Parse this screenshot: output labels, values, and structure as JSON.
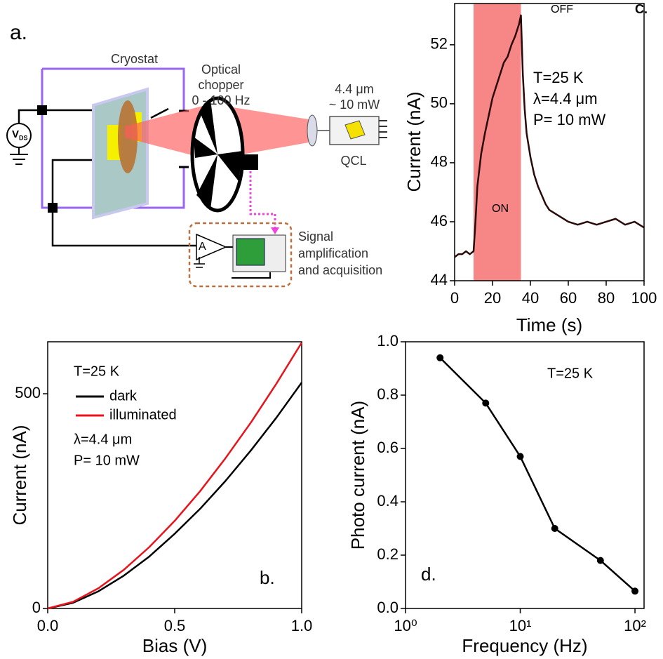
{
  "diagram": {
    "panel_label": "a.",
    "cryostat": "Cryostat",
    "chopper": [
      "Optical",
      "chopper",
      "0 - 100 Hz"
    ],
    "laser": [
      "4.4 μm",
      "~ 10 mW"
    ],
    "source": "QCL",
    "voltmeter": "V",
    "voltmeter_sub": "DS",
    "amplifier": "A",
    "acquisition": [
      "Signal",
      "amplification",
      "and acquisition"
    ]
  },
  "chart_data": [
    {
      "type": "line",
      "xlabel": "Time (s)",
      "ylabel": "Current (nA)",
      "x": [
        0,
        2,
        4,
        6,
        8,
        10,
        11,
        12,
        14,
        16,
        18,
        20,
        22,
        24,
        26,
        28,
        30,
        32,
        34,
        35,
        36,
        37,
        38,
        40,
        42,
        44,
        46,
        48,
        50,
        55,
        60,
        65,
        70,
        75,
        80,
        85,
        90,
        95,
        100
      ],
      "values": [
        44.8,
        44.9,
        44.9,
        45.0,
        44.9,
        45.0,
        46.0,
        47.2,
        48.3,
        49.0,
        49.6,
        50.2,
        50.6,
        51.0,
        51.4,
        51.6,
        52.0,
        52.3,
        52.7,
        53.0,
        51.0,
        49.8,
        49.0,
        48.2,
        47.6,
        47.2,
        46.9,
        46.6,
        46.4,
        46.2,
        46.0,
        45.9,
        46.0,
        45.9,
        46.0,
        46.1,
        45.9,
        46.0,
        45.8
      ],
      "color": "#2a0a0a",
      "span": [
        10,
        35
      ],
      "span_color": "#f78686",
      "xlim": [
        0,
        100
      ],
      "xticks": [
        0,
        20,
        40,
        60,
        80,
        100
      ],
      "ylim": [
        44,
        53.4
      ],
      "yticks": [
        44,
        46,
        48,
        50,
        52
      ],
      "annotations": [
        "OFF",
        "ON",
        "C.",
        "T=25 K",
        "λ=4.4 μm",
        "P= 10 mW"
      ]
    },
    {
      "type": "line",
      "xlabel": "Bias (V)",
      "ylabel": "Current (nA)",
      "x": [
        0,
        0.1,
        0.2,
        0.3,
        0.4,
        0.5,
        0.6,
        0.7,
        0.8,
        0.9,
        1.0
      ],
      "series": [
        {
          "name": "dark",
          "color": "#000000",
          "values": [
            0,
            13.2,
            40.1,
            76.6,
            121,
            174,
            232,
            297,
            368,
            444,
            526
          ]
        },
        {
          "name": "illuminated",
          "color": "#e8141c",
          "values": [
            0,
            15.5,
            47.2,
            90.2,
            143,
            204,
            273,
            350,
            433,
            523,
            619
          ]
        }
      ],
      "xlim": [
        0,
        1.0
      ],
      "xticks": [
        {
          "value": 0,
          "label": "0.0"
        },
        0.5,
        {
          "value": 1.0,
          "label": "1.0"
        }
      ],
      "ylim": [
        0,
        621
      ],
      "yticks": [
        0,
        500
      ],
      "annotations": [
        "T=25 K",
        "λ=4.4 μm",
        "P= 10 mW",
        "b."
      ]
    },
    {
      "type": "line",
      "xlabel": "Frequency (Hz)",
      "ylabel": "Photo current (nA)",
      "xscale": "log",
      "markers": true,
      "x": [
        2,
        5,
        10,
        20,
        50,
        100
      ],
      "values": [
        0.94,
        0.77,
        0.57,
        0.3,
        0.18,
        0.065
      ],
      "color": "#000000",
      "xlim": [
        1,
        120
      ],
      "xticks": [
        {
          "value": 1,
          "label": "10⁰"
        },
        {
          "value": 10,
          "label": "10¹"
        },
        {
          "value": 100,
          "label": "10²"
        }
      ],
      "ylim": [
        0,
        1.0
      ],
      "yticks": [
        {
          "value": 0,
          "label": "0.0"
        },
        0.2,
        0.4,
        0.6,
        0.8,
        {
          "value": 1.0,
          "label": "1.0"
        }
      ],
      "annotations": [
        "T=25 K",
        "d."
      ]
    }
  ]
}
